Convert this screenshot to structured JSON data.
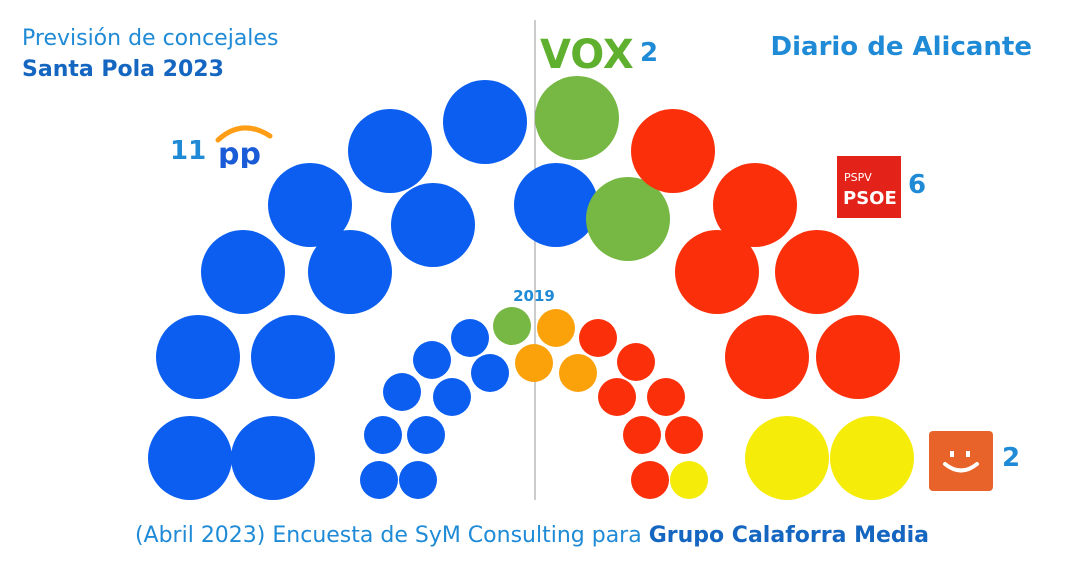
{
  "header": {
    "title_line1": "Previsión de concejales",
    "title_line2": "Santa Pola 2023",
    "brand": "Diario de Alicante"
  },
  "footer": {
    "prefix": "(Abril 2023) Encuesta de SyM Consulting para",
    "highlight": "Grupo Calaforra Media"
  },
  "parties": {
    "pp": {
      "seats_label": "11",
      "logo_text": "pp",
      "color": "#0b5ef0"
    },
    "vox": {
      "seats_label": "2",
      "logo_text": "VOX",
      "color": "#76b843"
    },
    "psoe": {
      "seats_label": "6",
      "logo_top": "PSPV",
      "logo_bottom": "PSOE",
      "color": "#fb2f0a"
    },
    "compromis": {
      "seats_label": "2",
      "color": "#f5ec0a",
      "logo_color": "#e8632a"
    }
  },
  "chart_data": [
    {
      "type": "pie",
      "title": "",
      "subtype": "parliament",
      "series": [
        {
          "name": "pp",
          "value": 11,
          "color": "#0b5ef0"
        },
        {
          "name": "vox",
          "value": 2,
          "color": "#76b843"
        },
        {
          "name": "psoe",
          "value": 6,
          "color": "#fb2f0a"
        },
        {
          "name": "compromis",
          "value": 2,
          "color": "#f5ec0a"
        }
      ]
    },
    {
      "type": "pie",
      "title": "2019",
      "subtype": "parliament",
      "series": [
        {
          "name": "pp",
          "value": 9,
          "color": "#0b5ef0"
        },
        {
          "name": "vox",
          "value": 1,
          "color": "#76b843"
        },
        {
          "name": "orange",
          "value": 3,
          "color": "#fba10a"
        },
        {
          "name": "psoe",
          "value": 7,
          "color": "#fb2f0a"
        },
        {
          "name": "compromis",
          "value": 1,
          "color": "#f5ec0a"
        }
      ]
    }
  ]
}
